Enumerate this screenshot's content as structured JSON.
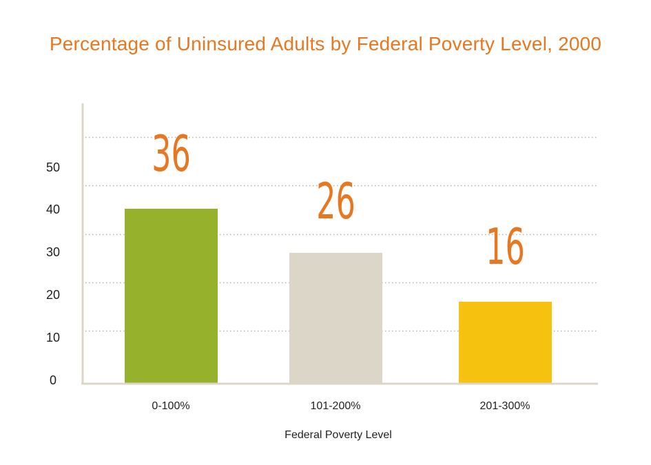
{
  "chart_data": {
    "type": "bar",
    "title": "Percentage of Uninsured Adults by Federal Poverty Level, 2000",
    "xlabel": "Federal Poverty Level",
    "ylabel": "",
    "categories": [
      "0-100%",
      "101-200%",
      "201-300%"
    ],
    "values": [
      36,
      26,
      16
    ],
    "data_labels": [
      "36",
      "26",
      "16"
    ],
    "yticks": [
      "0",
      "10",
      "20",
      "30",
      "40",
      "50"
    ],
    "bar_colors": [
      "#96b22c",
      "#dcd6c8",
      "#f4c20f"
    ],
    "title_color": "#e87722",
    "data_label_color": "#e87722",
    "axis_color": "#dcd6c8",
    "grid": "dotted",
    "legend": "none"
  }
}
